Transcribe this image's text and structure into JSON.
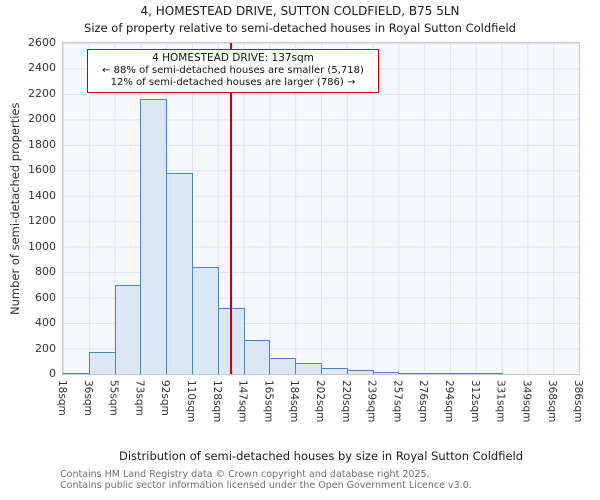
{
  "header": {
    "title": "4, HOMESTEAD DRIVE, SUTTON COLDFIELD, B75 5LN",
    "subtitle": "Size of property relative to semi-detached houses in Royal Sutton Coldfield"
  },
  "annotation": {
    "line1": "4 HOMESTEAD DRIVE: 137sqm",
    "line2": "← 88% of semi-detached houses are smaller (5,718)",
    "line3": "12% of semi-detached houses are larger (786) →",
    "border_color": "#cc0000"
  },
  "chart_data": {
    "type": "bar",
    "title": "4, HOMESTEAD DRIVE, SUTTON COLDFIELD, B75 5LN",
    "subtitle": "Size of property relative to semi-detached houses in Royal Sutton Coldfield",
    "xlabel": "Distribution of semi-detached houses by size in Royal Sutton Coldfield",
    "ylabel": "Number of semi-detached properties",
    "x_tick_labels": [
      "18sqm",
      "36sqm",
      "55sqm",
      "73sqm",
      "92sqm",
      "110sqm",
      "128sqm",
      "147sqm",
      "165sqm",
      "184sqm",
      "202sqm",
      "220sqm",
      "239sqm",
      "257sqm",
      "276sqm",
      "294sqm",
      "312sqm",
      "331sqm",
      "349sqm",
      "368sqm",
      "386sqm"
    ],
    "bin_edges": [
      18,
      36,
      55,
      73,
      92,
      110,
      128,
      147,
      165,
      184,
      202,
      220,
      239,
      257,
      276,
      294,
      312,
      331,
      349,
      368,
      386
    ],
    "values": [
      10,
      175,
      700,
      2160,
      1580,
      840,
      520,
      265,
      125,
      85,
      50,
      30,
      12,
      8,
      5,
      4,
      3,
      0,
      0,
      0
    ],
    "y_ticks": [
      0,
      200,
      400,
      600,
      800,
      1000,
      1200,
      1400,
      1600,
      1800,
      2000,
      2200,
      2400,
      2600
    ],
    "ylim": [
      0,
      2600
    ],
    "grid": true,
    "legend": "none",
    "bar_fill": "#dce7f5",
    "bar_border": "#4f81bd",
    "marker": {
      "value": 137,
      "color": "#cc0000"
    },
    "smaller": {
      "pct": "88%",
      "count": "5,718"
    },
    "larger": {
      "pct": "12%",
      "count": "786"
    }
  },
  "footer": {
    "line1": "Contains HM Land Registry data © Crown copyright and database right 2025.",
    "line2": "Contains public sector information licensed under the Open Government Licence v3.0."
  }
}
